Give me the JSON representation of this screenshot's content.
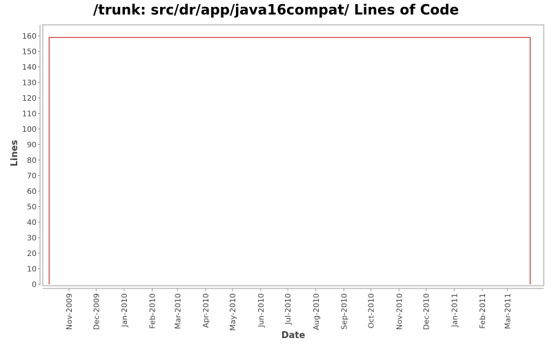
{
  "chart_data": {
    "type": "line",
    "title": "/trunk: src/dr/app/java16compat/ Lines of Code",
    "xlabel": "Date",
    "ylabel": "Lines",
    "ylim": [
      0,
      165
    ],
    "y_ticks": [
      0,
      10,
      20,
      30,
      40,
      50,
      60,
      70,
      80,
      90,
      100,
      110,
      120,
      130,
      140,
      150,
      160
    ],
    "x_range": [
      "2009-10-03",
      "2011-04-10"
    ],
    "x_ticks": [
      {
        "date": "2009-11-01",
        "label": "Nov-2009"
      },
      {
        "date": "2009-12-01",
        "label": "Dec-2009"
      },
      {
        "date": "2010-01-01",
        "label": "Jan-2010"
      },
      {
        "date": "2010-02-01",
        "label": "Feb-2010"
      },
      {
        "date": "2010-03-01",
        "label": "Mar-2010"
      },
      {
        "date": "2010-04-01",
        "label": "Apr-2010"
      },
      {
        "date": "2010-05-01",
        "label": "May-2010"
      },
      {
        "date": "2010-06-01",
        "label": "Jun-2010"
      },
      {
        "date": "2010-07-01",
        "label": "Jul-2010"
      },
      {
        "date": "2010-08-01",
        "label": "Aug-2010"
      },
      {
        "date": "2010-09-01",
        "label": "Sep-2010"
      },
      {
        "date": "2010-10-01",
        "label": "Oct-2010"
      },
      {
        "date": "2010-11-01",
        "label": "Nov-2010"
      },
      {
        "date": "2010-12-01",
        "label": "Dec-2010"
      },
      {
        "date": "2011-01-01",
        "label": "Jan-2011"
      },
      {
        "date": "2011-02-01",
        "label": "Feb-2011"
      },
      {
        "date": "2011-03-01",
        "label": "Mar-2011"
      }
    ],
    "series": [
      {
        "color": "#cc0000",
        "points": [
          {
            "x": "2009-10-10",
            "y": 0
          },
          {
            "x": "2009-10-10",
            "y": 159
          },
          {
            "x": "2011-03-26",
            "y": 159
          },
          {
            "x": "2011-03-26",
            "y": 0
          }
        ]
      }
    ],
    "grid": false,
    "legend": "none"
  }
}
